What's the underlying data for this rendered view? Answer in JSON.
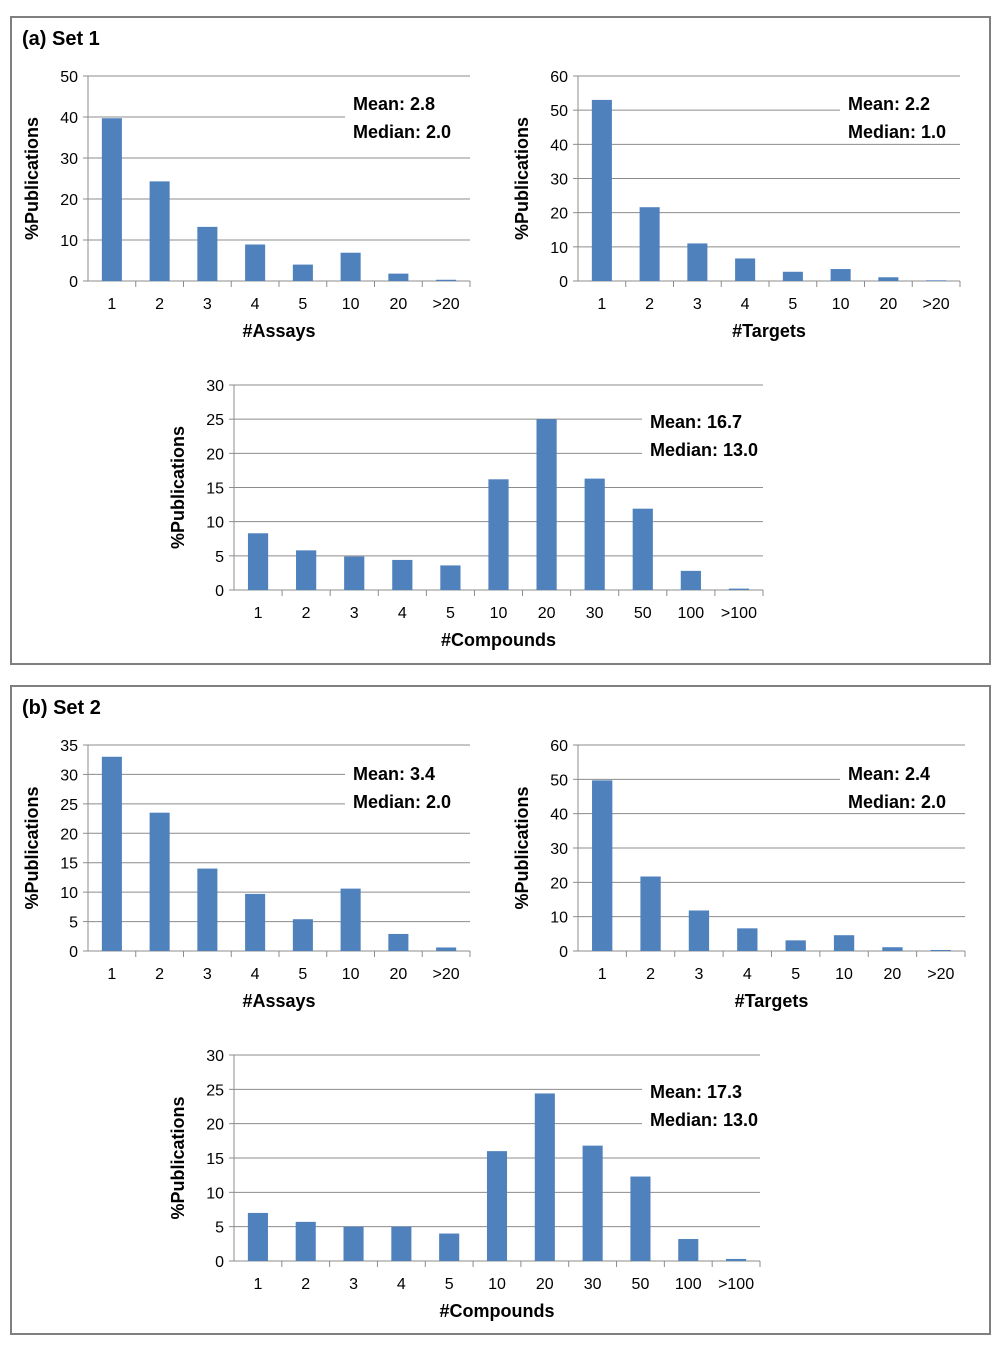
{
  "panels": [
    {
      "title": "(a) Set 1",
      "charts": [
        {
          "type": "bar",
          "categories": [
            "1",
            "2",
            "3",
            "4",
            "5",
            "10",
            "20",
            ">20"
          ],
          "values": [
            39.7,
            24.3,
            13.2,
            8.9,
            4.0,
            6.9,
            1.8,
            0.3
          ],
          "xlabel": "#Assays",
          "ylabel": "%Publications",
          "ylim": [
            0,
            50
          ],
          "ystep": 10,
          "grid": true,
          "mean_label": "Mean: 2.8",
          "median_label": "Median: 2.0",
          "bar_color": "#4f81bd"
        },
        {
          "type": "bar",
          "categories": [
            "1",
            "2",
            "3",
            "4",
            "5",
            "10",
            "20",
            ">20"
          ],
          "values": [
            53.0,
            21.6,
            11.0,
            6.6,
            2.7,
            3.5,
            1.1,
            0.2
          ],
          "xlabel": "#Targets",
          "ylabel": "%Publications",
          "ylim": [
            0,
            60
          ],
          "ystep": 10,
          "grid": true,
          "mean_label": "Mean: 2.2",
          "median_label": "Median: 1.0",
          "bar_color": "#4f81bd"
        },
        {
          "type": "bar",
          "categories": [
            "1",
            "2",
            "3",
            "4",
            "5",
            "10",
            "20",
            "30",
            "50",
            "100",
            ">100"
          ],
          "values": [
            8.3,
            5.8,
            4.9,
            4.4,
            3.6,
            16.2,
            25.0,
            16.3,
            11.9,
            2.8,
            0.2
          ],
          "xlabel": "#Compounds",
          "ylabel": "%Publications",
          "ylim": [
            0,
            30
          ],
          "ystep": 5,
          "grid": true,
          "mean_label": "Mean: 16.7",
          "median_label": "Median: 13.0",
          "bar_color": "#4f81bd"
        }
      ]
    },
    {
      "title": "(b) Set 2",
      "charts": [
        {
          "type": "bar",
          "categories": [
            "1",
            "2",
            "3",
            "4",
            "5",
            "10",
            "20",
            ">20"
          ],
          "values": [
            33.0,
            23.5,
            14.0,
            9.7,
            5.4,
            10.6,
            2.9,
            0.6
          ],
          "xlabel": "#Assays",
          "ylabel": "%Publications",
          "ylim": [
            0,
            35
          ],
          "ystep": 5,
          "grid": true,
          "mean_label": "Mean: 3.4",
          "median_label": "Median: 2.0",
          "bar_color": "#4f81bd"
        },
        {
          "type": "bar",
          "categories": [
            "1",
            "2",
            "3",
            "4",
            "5",
            "10",
            "20",
            ">20"
          ],
          "values": [
            49.7,
            21.7,
            11.8,
            6.6,
            3.1,
            4.6,
            1.1,
            0.3
          ],
          "xlabel": "#Targets",
          "ylabel": "%Publications",
          "ylim": [
            0,
            60
          ],
          "ystep": 10,
          "grid": true,
          "mean_label": "Mean: 2.4",
          "median_label": "Median: 2.0",
          "bar_color": "#4f81bd"
        },
        {
          "type": "bar",
          "categories": [
            "1",
            "2",
            "3",
            "4",
            "5",
            "10",
            "20",
            "30",
            "50",
            "100",
            ">100"
          ],
          "values": [
            7.0,
            5.7,
            5.0,
            5.0,
            4.0,
            16.0,
            24.4,
            16.8,
            12.3,
            3.2,
            0.3
          ],
          "xlabel": "#Compounds",
          "ylabel": "%Publications",
          "ylim": [
            0,
            30
          ],
          "ystep": 5,
          "grid": true,
          "mean_label": "Mean: 17.3",
          "median_label": "Median: 13.0",
          "bar_color": "#4f81bd"
        }
      ]
    }
  ]
}
